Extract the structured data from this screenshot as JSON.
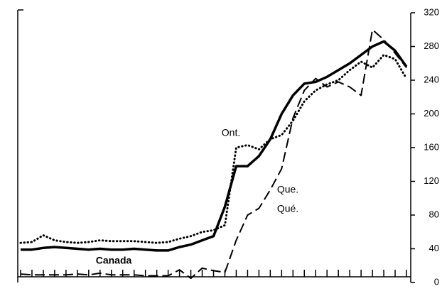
{
  "chart_data": {
    "type": "line",
    "categories": [
      null,
      null,
      null,
      null,
      null,
      null,
      null,
      null,
      null,
      null,
      null,
      null,
      null,
      null,
      null,
      null,
      null,
      null,
      null,
      null,
      null,
      null,
      null,
      null,
      null,
      null,
      null,
      null,
      null,
      null,
      null,
      null,
      null,
      null,
      null
    ],
    "series": [
      {
        "name": "Canada",
        "color": "#000000",
        "line_style": "solid",
        "values": [
          39,
          39,
          41,
          42,
          41,
          40,
          39,
          40,
          39,
          39,
          40,
          39,
          38,
          38,
          42,
          45,
          50,
          55,
          90,
          138,
          138,
          150,
          170,
          200,
          222,
          236,
          238,
          244,
          252,
          260,
          270,
          280,
          286,
          275,
          256
        ]
      },
      {
        "name": "Ont.",
        "color": "#000000",
        "line_style": "dotted",
        "values": [
          47,
          48,
          56,
          50,
          48,
          47,
          48,
          50,
          49,
          49,
          49,
          48,
          47,
          48,
          52,
          55,
          60,
          62,
          68,
          160,
          163,
          158,
          170,
          175,
          192,
          215,
          228,
          235,
          240,
          252,
          262,
          255,
          270,
          265,
          242
        ]
      },
      {
        "name": "Que.",
        "color": "#000000",
        "line_style": "dashed",
        "values": [
          10,
          9,
          9,
          9,
          9,
          10,
          9,
          11,
          9,
          9,
          9,
          8,
          8,
          8,
          15,
          5,
          17,
          14,
          12,
          50,
          80,
          88,
          110,
          135,
          195,
          228,
          242,
          232,
          238,
          232,
          222,
          300,
          288,
          272,
          255
        ]
      }
    ],
    "annotations": [
      "Qué."
    ],
    "ylim": [
      0,
      320
    ],
    "yticks": [
      0,
      40,
      80,
      120,
      160,
      200,
      240,
      280,
      320
    ],
    "y_axis_side": "right",
    "grid": false
  }
}
